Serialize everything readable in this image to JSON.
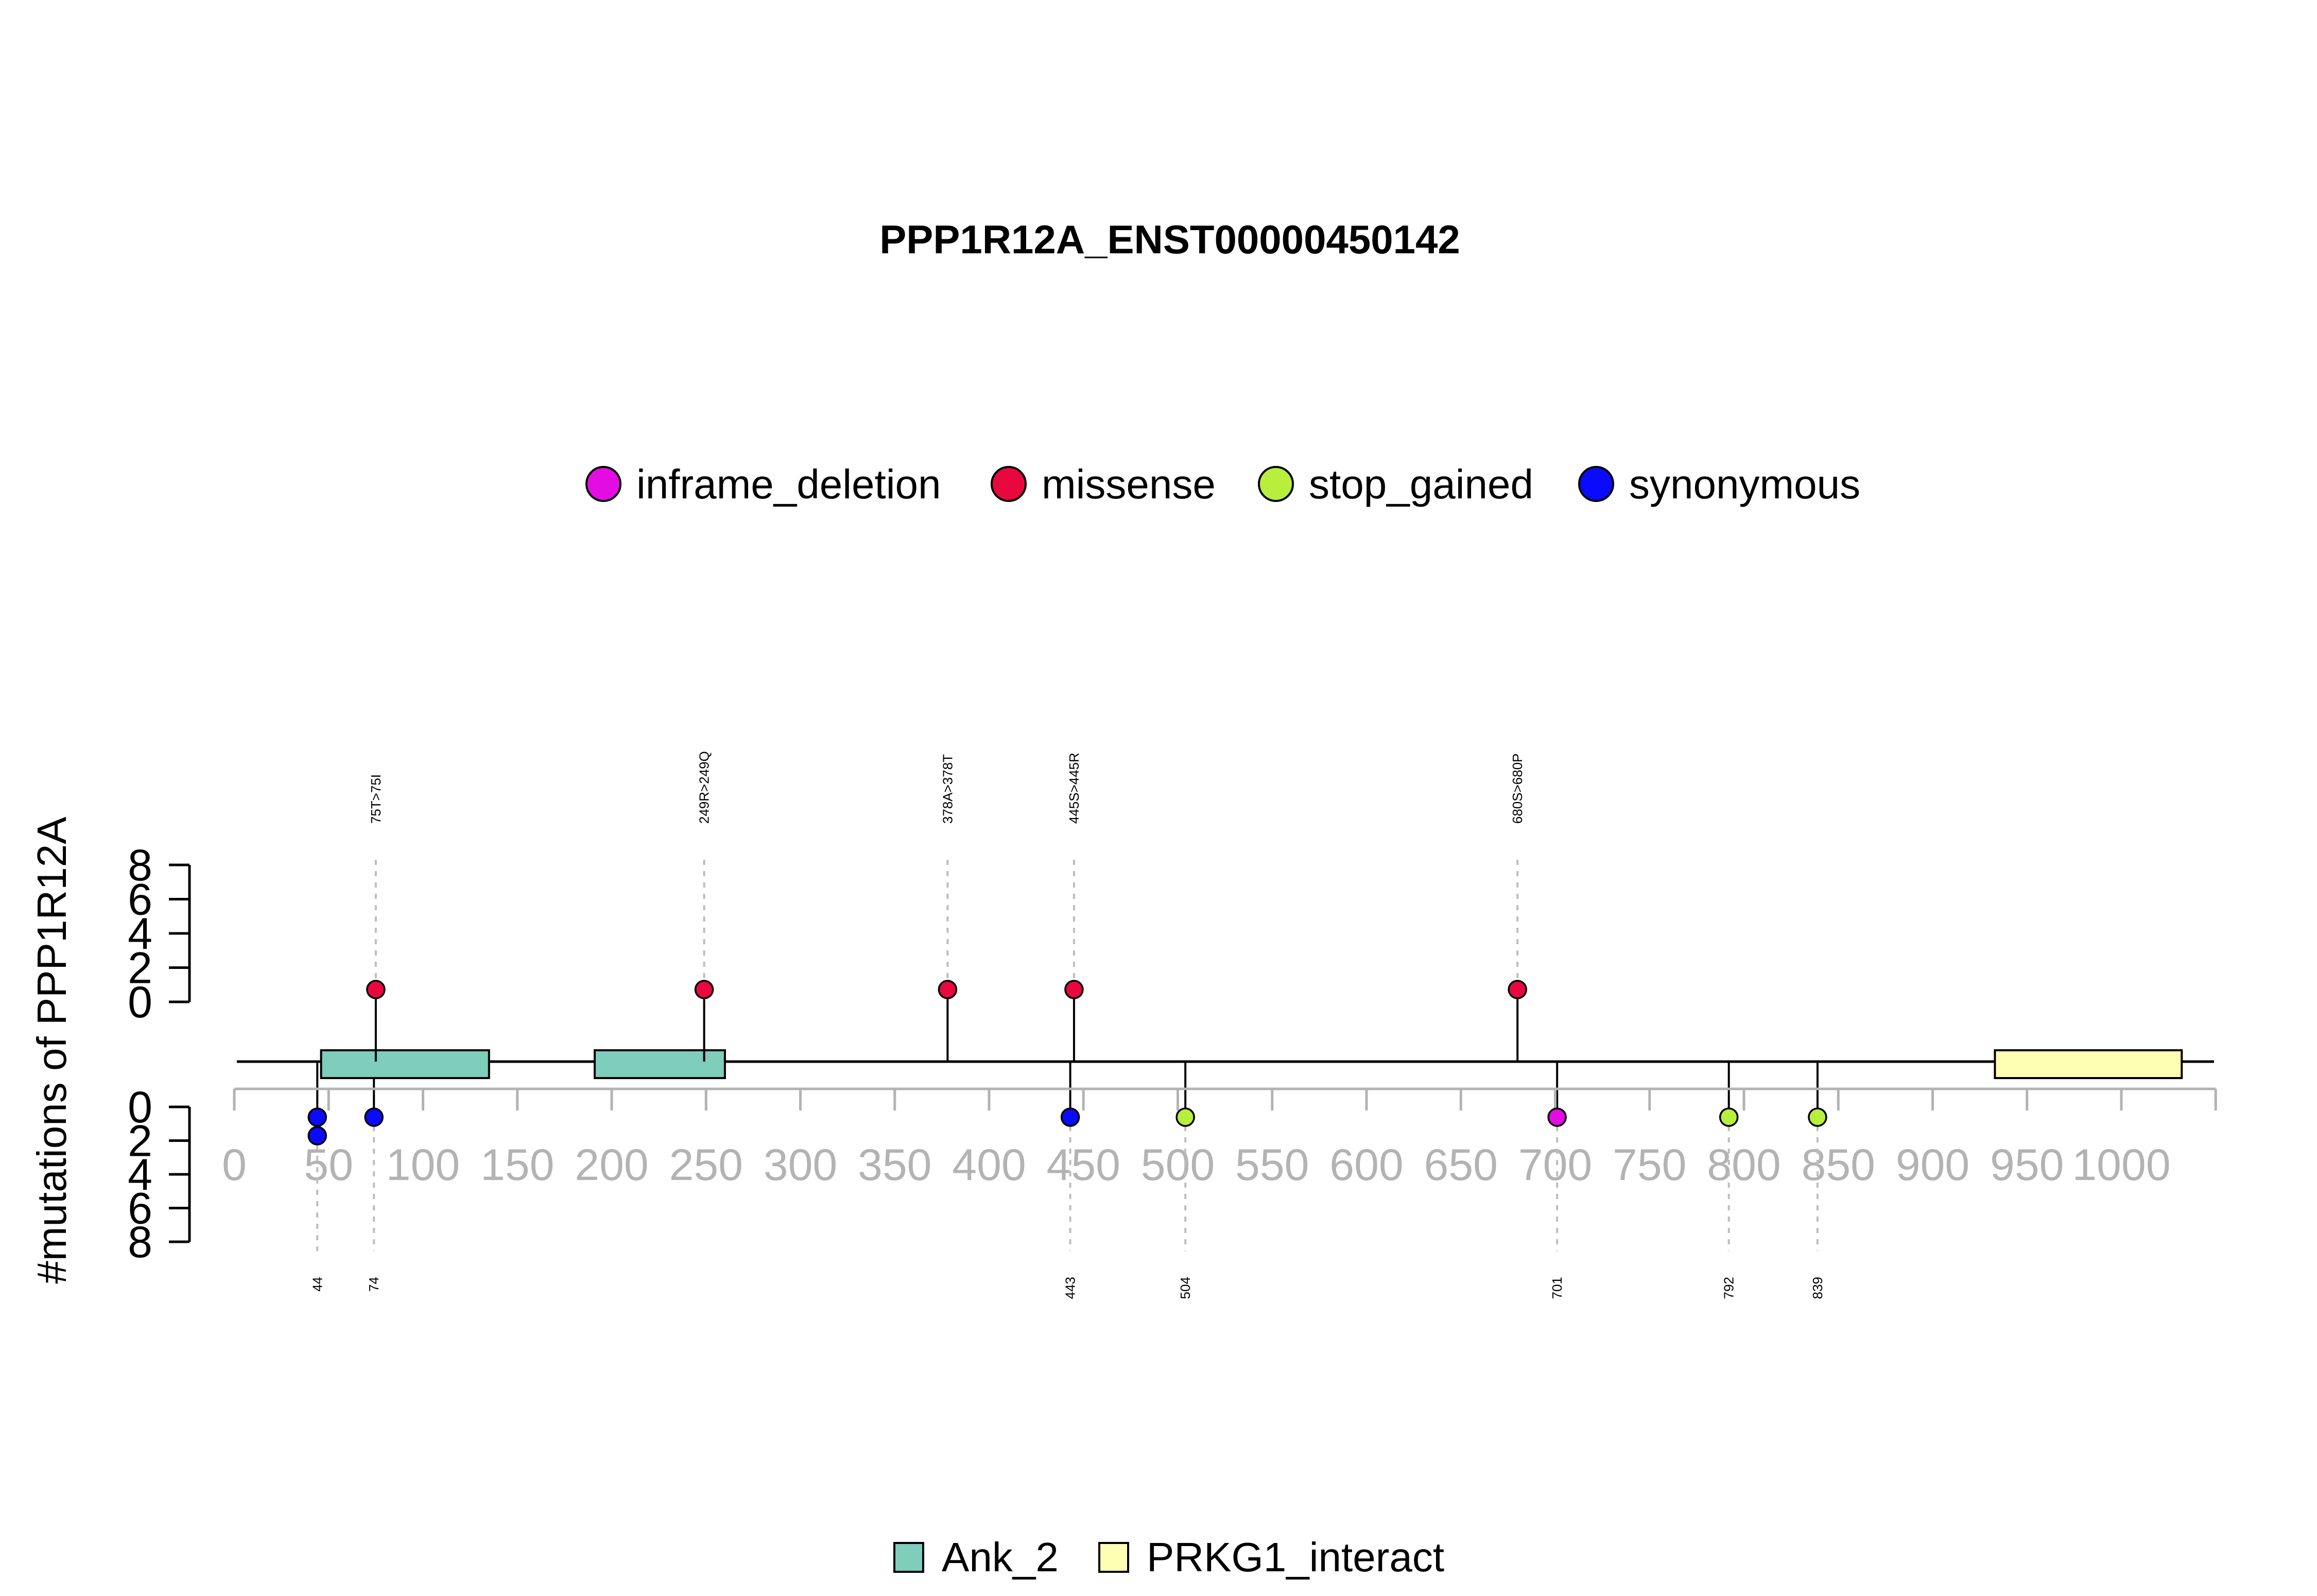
{
  "chart_data": {
    "type": "lollipop",
    "title": "PPP1R12A_ENST00000450142",
    "ylabel": "#mutations of PPP1R12A",
    "x_ticks": [
      0,
      50,
      100,
      150,
      200,
      250,
      300,
      350,
      400,
      450,
      500,
      550,
      600,
      650,
      700,
      750,
      800,
      850,
      900,
      950,
      1000
    ],
    "xlim": [
      0,
      1050
    ],
    "protein_length": 1050,
    "y_ticks": [
      0,
      2,
      4,
      6,
      8
    ],
    "ylim": [
      0,
      8
    ],
    "legend_mutations": [
      {
        "name": "inframe_deletion",
        "color": "#e30ce3"
      },
      {
        "name": "missense",
        "color": "#e8083e"
      },
      {
        "name": "stop_gained",
        "color": "#b8ef3c"
      },
      {
        "name": "synonymous",
        "color": "#0a0aff"
      }
    ],
    "legend_domains": [
      {
        "name": "Ank_2",
        "color": "#7fcdbb"
      },
      {
        "name": "PRKG1_interact",
        "color": "#ffffb3"
      }
    ],
    "domains": [
      {
        "name": "Ank_2",
        "start": 46,
        "end": 135
      },
      {
        "name": "Ank_2",
        "start": 191,
        "end": 260
      },
      {
        "name": "PRKG1_interact",
        "start": 933,
        "end": 1032
      }
    ],
    "top_mutations": [
      {
        "position": 75,
        "label": "75T>75I",
        "type": "missense",
        "count": 1
      },
      {
        "position": 249,
        "label": "249R>249Q",
        "type": "missense",
        "count": 1
      },
      {
        "position": 378,
        "label": "378A>378T",
        "type": "missense",
        "count": 1
      },
      {
        "position": 445,
        "label": "445S>445R",
        "type": "missense",
        "count": 1
      },
      {
        "position": 680,
        "label": "680S>680P",
        "type": "missense",
        "count": 1
      }
    ],
    "bottom_mutations": [
      {
        "position": 44,
        "label": "44",
        "type": "synonymous",
        "count": 2
      },
      {
        "position": 74,
        "label": "74",
        "type": "synonymous",
        "count": 1
      },
      {
        "position": 443,
        "label": "443",
        "type": "synonymous",
        "count": 1
      },
      {
        "position": 504,
        "label": "504",
        "type": "stop_gained",
        "count": 1
      },
      {
        "position": 701,
        "label": "701",
        "type": "inframe_deletion",
        "count": 1
      },
      {
        "position": 792,
        "label": "792",
        "type": "stop_gained",
        "count": 1
      },
      {
        "position": 839,
        "label": "839",
        "type": "stop_gained",
        "count": 1
      }
    ]
  }
}
